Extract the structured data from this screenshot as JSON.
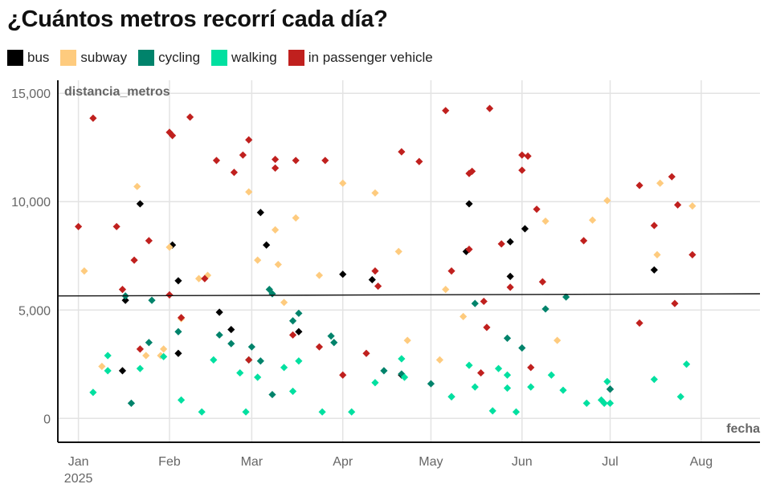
{
  "chart_data": {
    "type": "scatter",
    "title": "¿Cuántos metros recorrí cada día?",
    "xlabel": "fecha",
    "ylabel": "distancia_metros",
    "x_range": [
      "2024-12-25",
      "2025-08-21"
    ],
    "ylim": [
      -1100,
      15600
    ],
    "y_ticks": [
      0,
      5000,
      10000,
      15000
    ],
    "y_tick_labels": [
      "0",
      "5,000",
      "10,000",
      "15,000"
    ],
    "x_ticks": [
      {
        "date": "2025-01-01",
        "label": "Jan",
        "sublabel": "2025"
      },
      {
        "date": "2025-02-01",
        "label": "Feb",
        "sublabel": ""
      },
      {
        "date": "2025-03-01",
        "label": "Mar",
        "sublabel": ""
      },
      {
        "date": "2025-04-01",
        "label": "Apr",
        "sublabel": ""
      },
      {
        "date": "2025-05-01",
        "label": "May",
        "sublabel": ""
      },
      {
        "date": "2025-06-01",
        "label": "Jun",
        "sublabel": ""
      },
      {
        "date": "2025-07-01",
        "label": "Jul",
        "sublabel": ""
      },
      {
        "date": "2025-08-01",
        "label": "Aug",
        "sublabel": ""
      }
    ],
    "grid": true,
    "legend_position": "top-left",
    "marker": "diamond",
    "trend_line": {
      "start": [
        "2024-12-25",
        5650
      ],
      "end": [
        "2025-08-21",
        5750
      ],
      "color": "#111111"
    },
    "series": [
      {
        "name": "bus",
        "color": "#000000",
        "points": [
          [
            "2025-01-16",
            2200
          ],
          [
            "2025-01-17",
            5450
          ],
          [
            "2025-01-22",
            9900
          ],
          [
            "2025-02-02",
            8000
          ],
          [
            "2025-02-04",
            3000
          ],
          [
            "2025-02-04",
            6350
          ],
          [
            "2025-02-18",
            4900
          ],
          [
            "2025-02-22",
            4100
          ],
          [
            "2025-03-04",
            9500
          ],
          [
            "2025-03-06",
            8000
          ],
          [
            "2025-03-17",
            4000
          ],
          [
            "2025-04-01",
            6650
          ],
          [
            "2025-04-11",
            6400
          ],
          [
            "2025-04-21",
            2000
          ],
          [
            "2025-05-13",
            7700
          ],
          [
            "2025-05-14",
            9900
          ],
          [
            "2025-05-28",
            6550
          ],
          [
            "2025-05-28",
            8150
          ],
          [
            "2025-06-02",
            8750
          ],
          [
            "2025-07-01",
            1350
          ],
          [
            "2025-07-16",
            6850
          ]
        ]
      },
      {
        "name": "subway",
        "color": "#fecb7e",
        "points": [
          [
            "2025-01-03",
            6800
          ],
          [
            "2025-01-09",
            2400
          ],
          [
            "2025-01-21",
            10700
          ],
          [
            "2025-01-24",
            2900
          ],
          [
            "2025-01-29",
            2900
          ],
          [
            "2025-01-30",
            3200
          ],
          [
            "2025-02-01",
            7900
          ],
          [
            "2025-02-05",
            4600
          ],
          [
            "2025-02-11",
            6450
          ],
          [
            "2025-02-14",
            6600
          ],
          [
            "2025-02-28",
            10450
          ],
          [
            "2025-03-03",
            7300
          ],
          [
            "2025-03-09",
            8700
          ],
          [
            "2025-03-10",
            7100
          ],
          [
            "2025-03-12",
            5350
          ],
          [
            "2025-03-16",
            9250
          ],
          [
            "2025-03-24",
            6600
          ],
          [
            "2025-04-01",
            10850
          ],
          [
            "2025-04-12",
            10400
          ],
          [
            "2025-04-20",
            7700
          ],
          [
            "2025-04-23",
            3600
          ],
          [
            "2025-05-04",
            2700
          ],
          [
            "2025-05-06",
            5950
          ],
          [
            "2025-05-12",
            4700
          ],
          [
            "2025-06-09",
            9100
          ],
          [
            "2025-06-13",
            3600
          ],
          [
            "2025-06-25",
            9150
          ],
          [
            "2025-06-30",
            10050
          ],
          [
            "2025-07-17",
            7550
          ],
          [
            "2025-07-18",
            10850
          ],
          [
            "2025-07-29",
            9800
          ]
        ]
      },
      {
        "name": "cycling",
        "color": "#00836b",
        "points": [
          [
            "2025-01-17",
            5650
          ],
          [
            "2025-01-19",
            700
          ],
          [
            "2025-01-25",
            3500
          ],
          [
            "2025-01-26",
            5450
          ],
          [
            "2025-02-04",
            4000
          ],
          [
            "2025-02-18",
            3850
          ],
          [
            "2025-02-22",
            3450
          ],
          [
            "2025-03-01",
            3300
          ],
          [
            "2025-03-04",
            2650
          ],
          [
            "2025-03-07",
            5950
          ],
          [
            "2025-03-08",
            1100
          ],
          [
            "2025-03-08",
            5750
          ],
          [
            "2025-03-15",
            4500
          ],
          [
            "2025-03-17",
            4850
          ],
          [
            "2025-03-28",
            3800
          ],
          [
            "2025-03-29",
            3500
          ],
          [
            "2025-04-15",
            2200
          ],
          [
            "2025-04-21",
            2050
          ],
          [
            "2025-05-01",
            1600
          ],
          [
            "2025-05-08",
            1000
          ],
          [
            "2025-05-16",
            5300
          ],
          [
            "2025-05-27",
            3700
          ],
          [
            "2025-06-01",
            3250
          ],
          [
            "2025-06-09",
            5050
          ],
          [
            "2025-06-16",
            5600
          ],
          [
            "2025-07-01",
            1350
          ]
        ]
      },
      {
        "name": "walking",
        "color": "#00e0a0",
        "points": [
          [
            "2025-01-06",
            1200
          ],
          [
            "2025-01-11",
            2900
          ],
          [
            "2025-01-11",
            2200
          ],
          [
            "2025-01-22",
            2300
          ],
          [
            "2025-01-30",
            2850
          ],
          [
            "2025-02-05",
            850
          ],
          [
            "2025-02-12",
            300
          ],
          [
            "2025-02-16",
            2700
          ],
          [
            "2025-02-25",
            2100
          ],
          [
            "2025-02-27",
            300
          ],
          [
            "2025-02-28",
            2700
          ],
          [
            "2025-03-03",
            1900
          ],
          [
            "2025-03-12",
            2350
          ],
          [
            "2025-03-15",
            1250
          ],
          [
            "2025-03-17",
            2650
          ],
          [
            "2025-03-25",
            300
          ],
          [
            "2025-04-04",
            300
          ],
          [
            "2025-04-12",
            1650
          ],
          [
            "2025-04-21",
            2750
          ],
          [
            "2025-04-22",
            1900
          ],
          [
            "2025-05-08",
            1000
          ],
          [
            "2025-05-14",
            2450
          ],
          [
            "2025-05-16",
            1450
          ],
          [
            "2025-05-22",
            350
          ],
          [
            "2025-05-24",
            2300
          ],
          [
            "2025-05-27",
            1400
          ],
          [
            "2025-05-27",
            2000
          ],
          [
            "2025-05-30",
            300
          ],
          [
            "2025-06-04",
            1450
          ],
          [
            "2025-06-11",
            2000
          ],
          [
            "2025-06-15",
            1300
          ],
          [
            "2025-06-23",
            700
          ],
          [
            "2025-06-28",
            850
          ],
          [
            "2025-06-29",
            700
          ],
          [
            "2025-06-30",
            1700
          ],
          [
            "2025-07-01",
            700
          ],
          [
            "2025-07-16",
            1800
          ],
          [
            "2025-07-25",
            1000
          ],
          [
            "2025-07-27",
            2500
          ]
        ]
      },
      {
        "name": "in passenger vehicle",
        "color": "#c0201e",
        "points": [
          [
            "2025-01-01",
            8850
          ],
          [
            "2025-01-06",
            13850
          ],
          [
            "2025-01-14",
            8850
          ],
          [
            "2025-01-16",
            5950
          ],
          [
            "2025-01-20",
            7300
          ],
          [
            "2025-01-22",
            3200
          ],
          [
            "2025-01-25",
            8200
          ],
          [
            "2025-02-01",
            5700
          ],
          [
            "2025-02-01",
            13200
          ],
          [
            "2025-02-02",
            13050
          ],
          [
            "2025-02-05",
            4650
          ],
          [
            "2025-02-08",
            13900
          ],
          [
            "2025-02-13",
            6450
          ],
          [
            "2025-02-17",
            11900
          ],
          [
            "2025-02-23",
            11350
          ],
          [
            "2025-02-26",
            12150
          ],
          [
            "2025-02-28",
            2700
          ],
          [
            "2025-02-28",
            12850
          ],
          [
            "2025-03-09",
            11950
          ],
          [
            "2025-03-09",
            11550
          ],
          [
            "2025-03-15",
            3850
          ],
          [
            "2025-03-16",
            11900
          ],
          [
            "2025-03-24",
            3300
          ],
          [
            "2025-03-26",
            11900
          ],
          [
            "2025-04-01",
            2000
          ],
          [
            "2025-04-09",
            3000
          ],
          [
            "2025-04-12",
            6800
          ],
          [
            "2025-04-13",
            6100
          ],
          [
            "2025-04-21",
            12300
          ],
          [
            "2025-04-27",
            11850
          ],
          [
            "2025-05-06",
            14200
          ],
          [
            "2025-05-08",
            6800
          ],
          [
            "2025-05-14",
            7800
          ],
          [
            "2025-05-14",
            11300
          ],
          [
            "2025-05-15",
            11400
          ],
          [
            "2025-05-18",
            2100
          ],
          [
            "2025-05-19",
            5400
          ],
          [
            "2025-05-20",
            4200
          ],
          [
            "2025-05-21",
            14300
          ],
          [
            "2025-05-25",
            8050
          ],
          [
            "2025-05-28",
            6050
          ],
          [
            "2025-06-01",
            11450
          ],
          [
            "2025-06-01",
            12150
          ],
          [
            "2025-06-03",
            12100
          ],
          [
            "2025-06-04",
            2350
          ],
          [
            "2025-06-06",
            9650
          ],
          [
            "2025-06-08",
            6300
          ],
          [
            "2025-06-22",
            8200
          ],
          [
            "2025-07-11",
            10750
          ],
          [
            "2025-07-11",
            4400
          ],
          [
            "2025-07-16",
            8900
          ],
          [
            "2025-07-22",
            11150
          ],
          [
            "2025-07-23",
            5300
          ],
          [
            "2025-07-24",
            9850
          ],
          [
            "2025-07-29",
            7550
          ]
        ]
      }
    ]
  }
}
